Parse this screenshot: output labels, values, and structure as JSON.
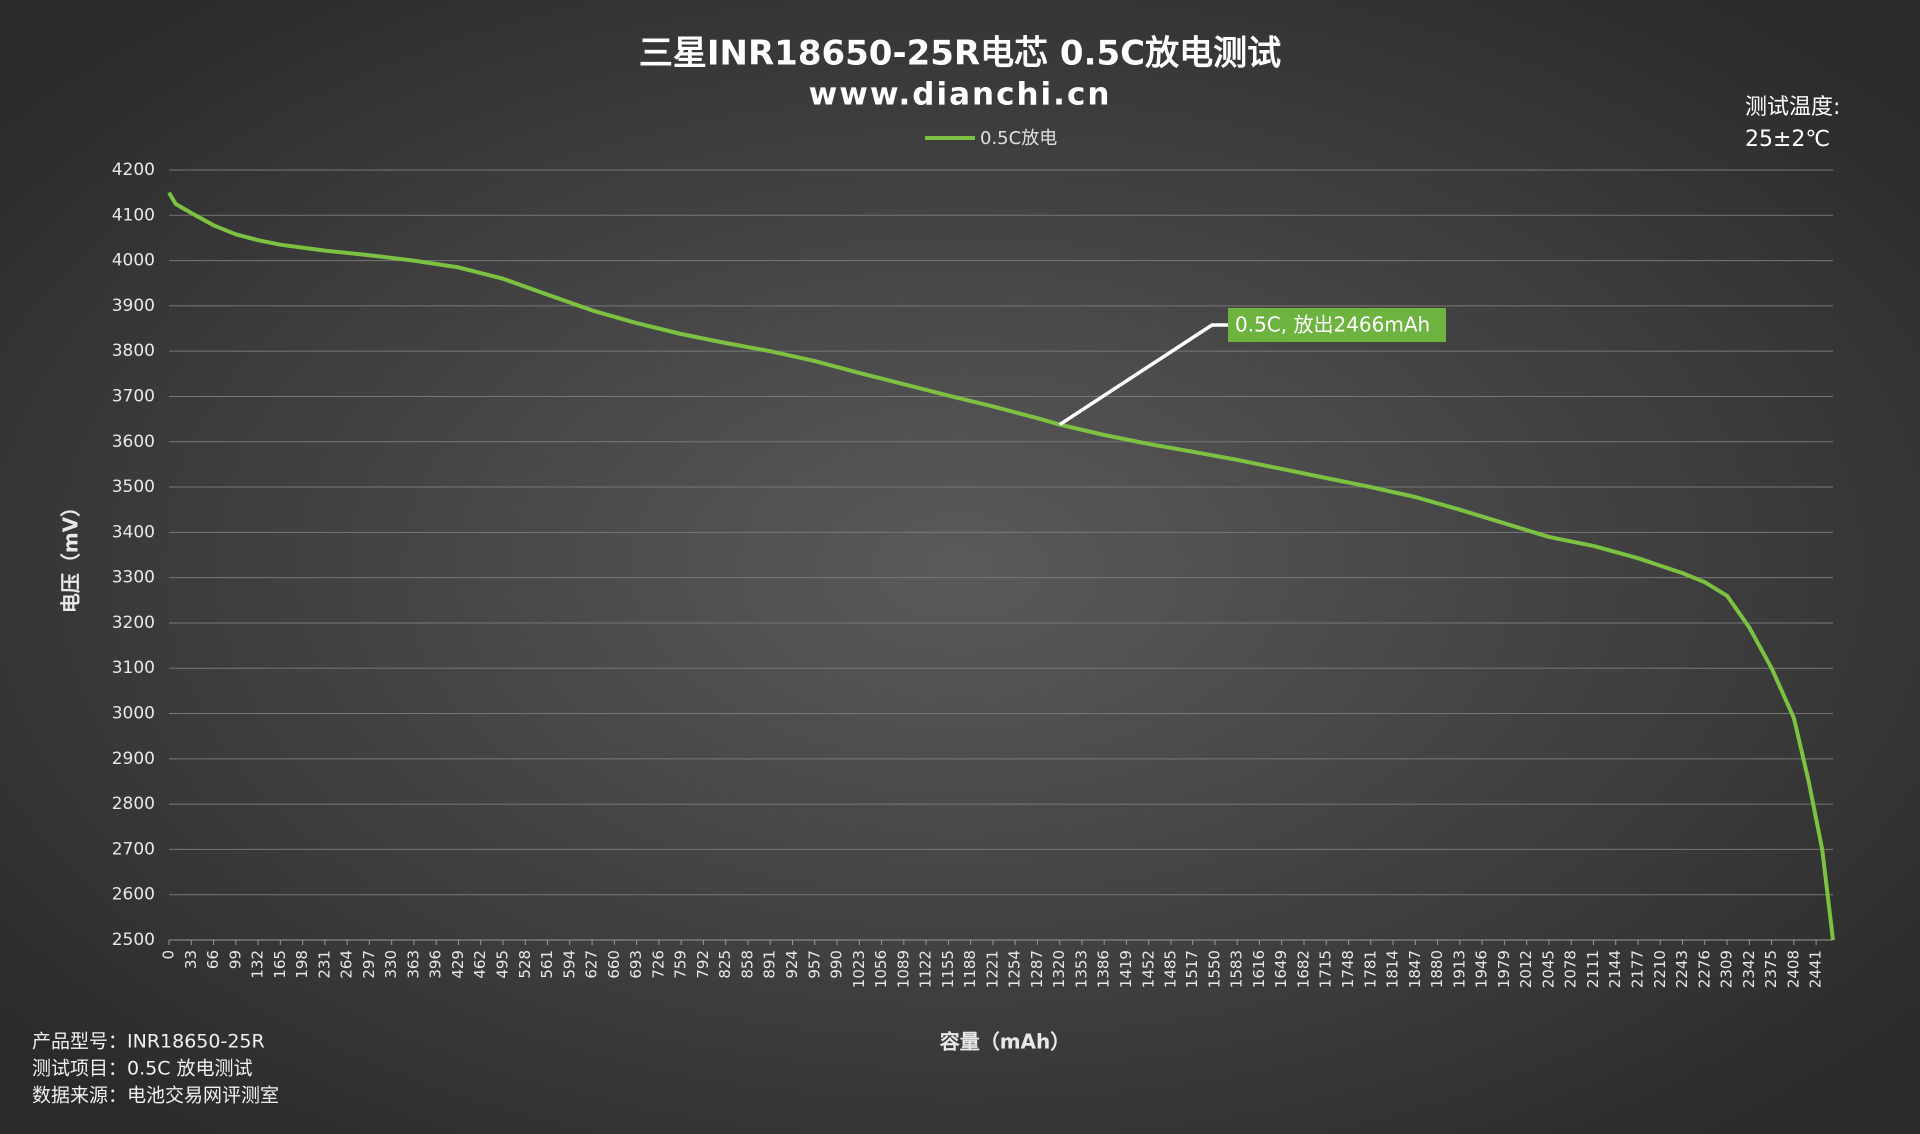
{
  "chart_data": {
    "type": "line",
    "title": "三星INR18650-25R电芯 0.5C放电测试",
    "subtitle": "www.dianchi.cn",
    "temperature_label": "测试温度:",
    "temperature": "25±2℃",
    "x_label": "容量（mAh）",
    "y_label": "电压（mV）",
    "annotation": "0.5C, 放出2466mAh",
    "notes": [
      "产品型号：INR18650-25R",
      "测试项目：0.5C 放电测试",
      "数据来源：电池交易网评测室"
    ],
    "grid": true,
    "legend": "top",
    "xlim": [
      0,
      2466
    ],
    "xticks": [
      0,
      33,
      66,
      99,
      132,
      165,
      198,
      231,
      264,
      297,
      330,
      363,
      396,
      429,
      462,
      495,
      528,
      561,
      594,
      627,
      660,
      693,
      726,
      759,
      792,
      825,
      858,
      891,
      924,
      957,
      990,
      1023,
      1056,
      1089,
      1122,
      1155,
      1188,
      1221,
      1254,
      1287,
      1320,
      1353,
      1386,
      1419,
      1452,
      1485,
      1517,
      1550,
      1583,
      1616,
      1649,
      1682,
      1715,
      1748,
      1781,
      1814,
      1847,
      1880,
      1913,
      1946,
      1979,
      2012,
      2045,
      2078,
      2111,
      2144,
      2177,
      2210,
      2243,
      2276,
      2309,
      2342,
      2375,
      2408,
      2441
    ],
    "ylim": [
      2500,
      4200
    ],
    "yticks": [
      2500,
      2600,
      2700,
      2800,
      2900,
      3000,
      3100,
      3200,
      3300,
      3400,
      3500,
      3600,
      3700,
      3800,
      3900,
      4000,
      4100,
      4200
    ],
    "x": [
      0,
      10,
      33,
      66,
      99,
      132,
      165,
      231,
      297,
      363,
      429,
      495,
      561,
      627,
      693,
      759,
      825,
      891,
      957,
      1023,
      1089,
      1155,
      1221,
      1287,
      1320,
      1386,
      1452,
      1517,
      1583,
      1649,
      1715,
      1781,
      1847,
      1913,
      1979,
      2045,
      2111,
      2177,
      2243,
      2276,
      2309,
      2342,
      2375,
      2408,
      2430,
      2450,
      2466
    ],
    "series": [
      {
        "name": "0.5C放电",
        "color": "#7cc142",
        "values": [
          4150,
          4125,
          4105,
          4078,
          4058,
          4045,
          4035,
          4022,
          4012,
          4000,
          3985,
          3960,
          3925,
          3890,
          3862,
          3838,
          3818,
          3800,
          3778,
          3752,
          3727,
          3702,
          3678,
          3652,
          3638,
          3615,
          3595,
          3578,
          3560,
          3540,
          3520,
          3500,
          3478,
          3450,
          3420,
          3390,
          3370,
          3343,
          3310,
          3290,
          3260,
          3190,
          3100,
          2990,
          2850,
          2700,
          2500
        ]
      }
    ]
  }
}
